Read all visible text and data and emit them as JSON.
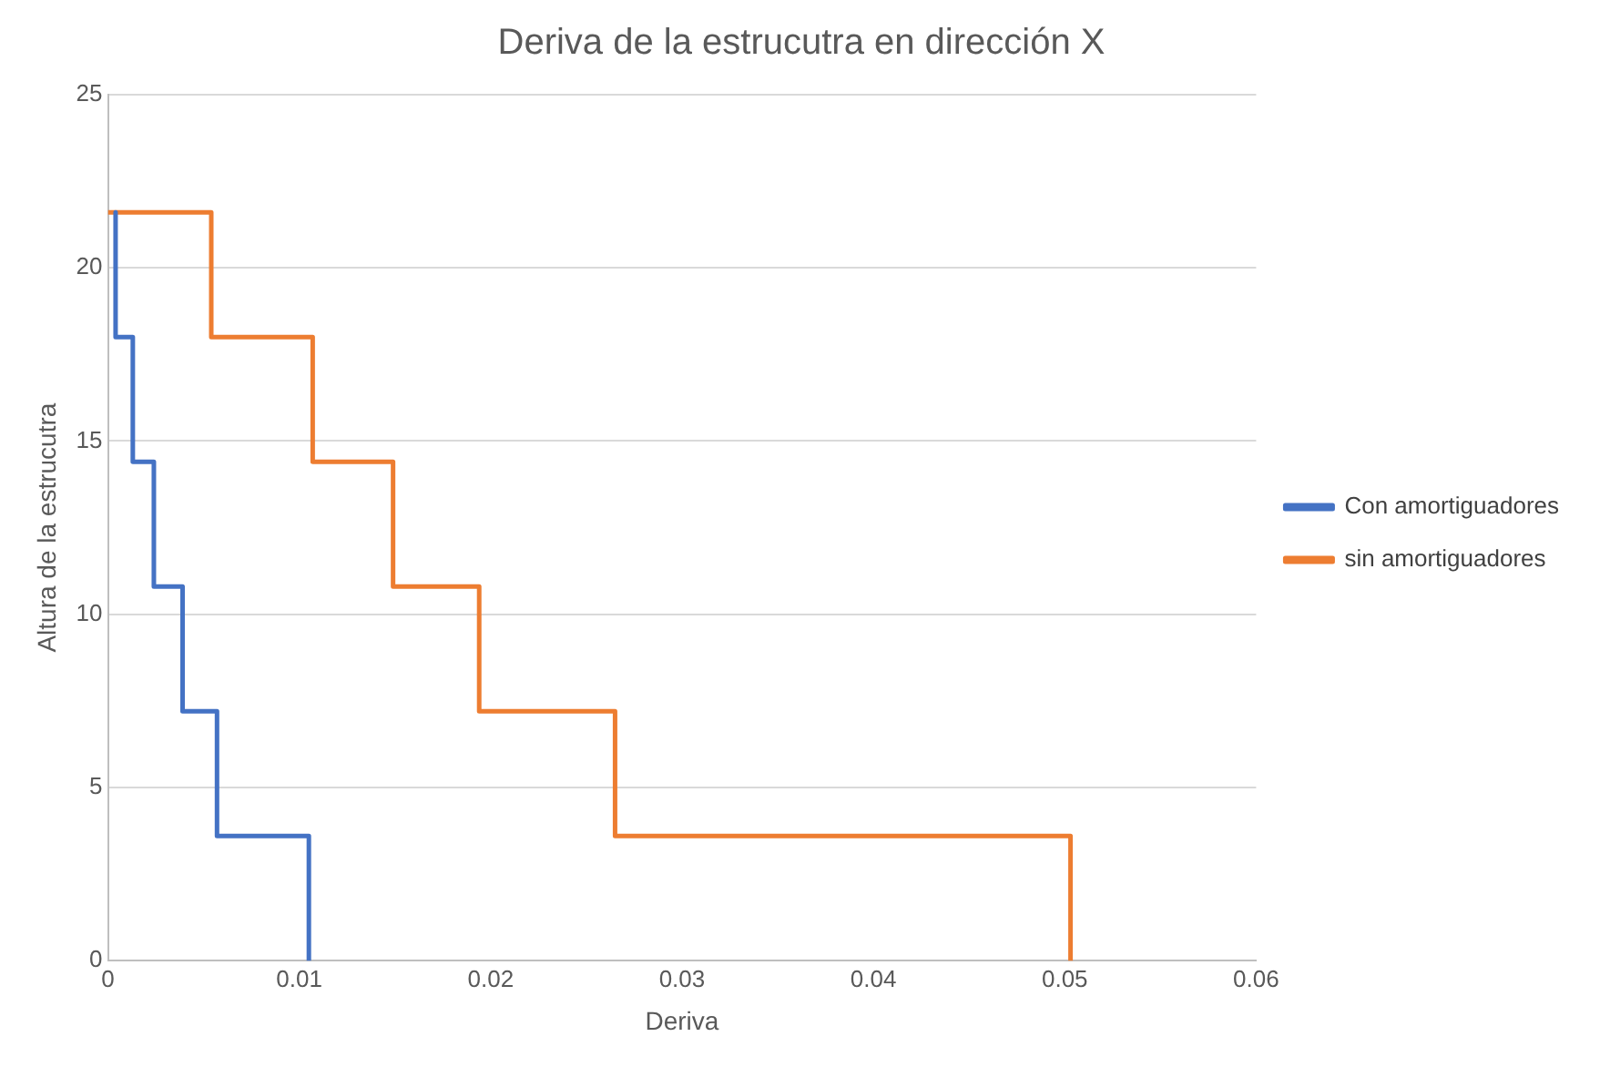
{
  "chart_data": {
    "type": "line",
    "title": "Deriva de la estrucutra en dirección X",
    "xlabel": "Deriva",
    "ylabel": "Altura de la estrucutra",
    "xlim": [
      0,
      0.06
    ],
    "xticks": [
      0,
      0.01,
      0.02,
      0.03,
      0.04,
      0.05,
      0.06
    ],
    "ylim": [
      0,
      25
    ],
    "yticks": [
      0,
      5,
      10,
      15,
      20,
      25
    ],
    "grid": "y",
    "legend": "right",
    "marker": "none",
    "series": [
      {
        "name": "Con amortiguadores",
        "color": "#4472c4",
        "x": [
          0.0004,
          0.0004,
          0.0013,
          0.0013,
          0.0024,
          0.0024,
          0.0039,
          0.0039,
          0.0057,
          0.0057,
          0.0105,
          0.0105
        ],
        "values": [
          21.6,
          18,
          18,
          14.4,
          14.4,
          10.8,
          10.8,
          7.2,
          7.2,
          3.6,
          3.6,
          0
        ]
      },
      {
        "name": "sin amortiguadores",
        "color": "#ed7d31",
        "x": [
          0,
          0.0054,
          0.0054,
          0.0107,
          0.0107,
          0.0149,
          0.0149,
          0.0194,
          0.0194,
          0.0265,
          0.0265,
          0.0503,
          0.0503
        ],
        "values": [
          21.6,
          21.6,
          18,
          18,
          14.4,
          14.4,
          10.8,
          10.8,
          7.2,
          7.2,
          3.6,
          3.6,
          0
        ]
      }
    ]
  }
}
